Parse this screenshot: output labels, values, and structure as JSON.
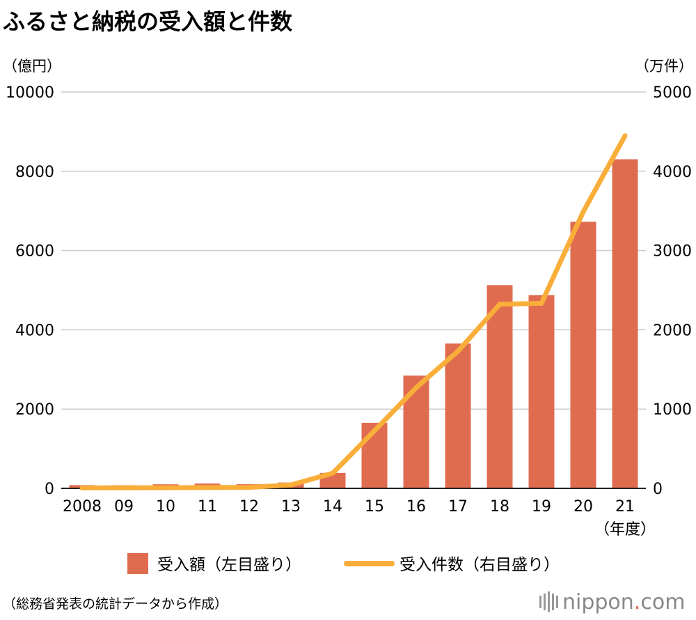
{
  "title": "ふるさと納税の受入額と件数",
  "left_unit": "（億円）",
  "right_unit": "（万件）",
  "x_unit": "（年度）",
  "source": "（総務省発表の統計データから作成）",
  "brand": {
    "name": "nippon",
    "dot": ".",
    "suffix": "com"
  },
  "colors": {
    "bar": "#e06c50",
    "line": "#f9ae3a",
    "grid": "#cccccc",
    "axis": "#222222"
  },
  "chart_data": {
    "type": "bar",
    "categories": [
      "2008",
      "09",
      "10",
      "11",
      "12",
      "13",
      "14",
      "15",
      "16",
      "17",
      "18",
      "19",
      "20",
      "21"
    ],
    "series": [
      {
        "name": "受入額（左目盛り）",
        "type": "bar",
        "axis": "left",
        "values": [
          81,
          77,
          102,
          121,
          104,
          146,
          389,
          1653,
          2844,
          3653,
          5127,
          4875,
          6725,
          8302
        ]
      },
      {
        "name": "受入件数（右目盛り）",
        "type": "line",
        "axis": "right",
        "values": [
          5,
          6,
          8,
          10,
          12,
          43,
          191,
          726,
          1271,
          1730,
          2322,
          2334,
          3489,
          4447
        ]
      }
    ],
    "y_left": {
      "min": 0,
      "max": 10000,
      "ticks": [
        "0",
        "2000",
        "4000",
        "6000",
        "8000",
        "10000"
      ]
    },
    "y_right": {
      "min": 0,
      "max": 5000,
      "ticks": [
        "0",
        "1000",
        "2000",
        "3000",
        "4000",
        "5000"
      ]
    },
    "grid": true,
    "legend": "bottom"
  }
}
